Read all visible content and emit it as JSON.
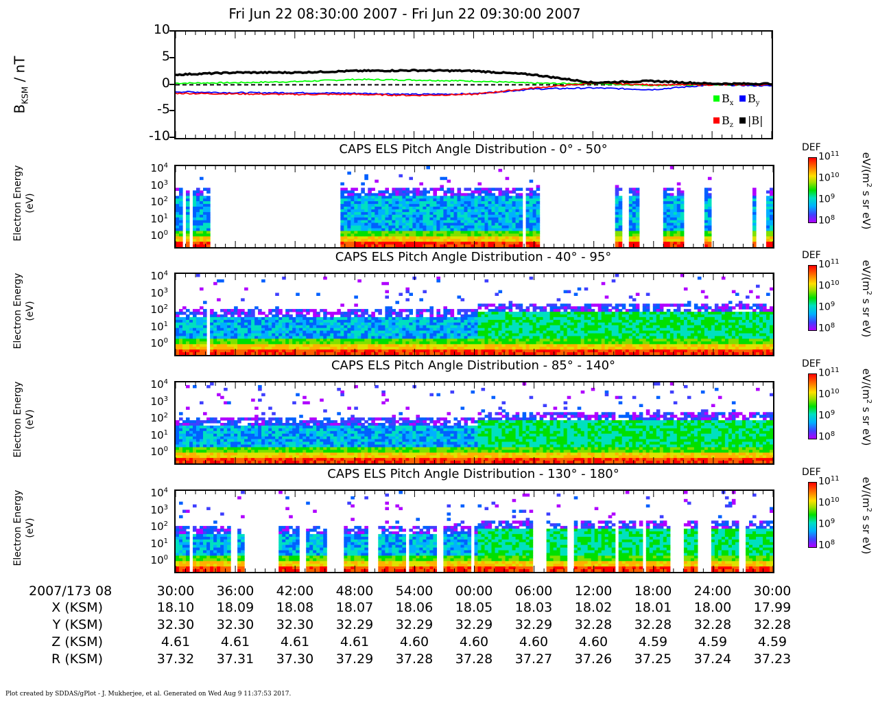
{
  "title": "Fri Jun 22 08:30:00 2007 - Fri Jun 22 09:30:00 2007",
  "mag_panel": {
    "ylabel_main": "B",
    "ylabel_sub": "KSM",
    "ylabel_unit": " / nT",
    "ticks": [
      "10",
      "5",
      "0",
      "-5",
      "-10"
    ],
    "legend": [
      {
        "label": "B",
        "sub": "x",
        "color": "#00ff00"
      },
      {
        "label": "B",
        "sub": "y",
        "color": "#0000ff"
      },
      {
        "label": "B",
        "sub": "z",
        "color": "#ff0000"
      },
      {
        "label": "|B|",
        "sub": "",
        "color": "#000000"
      }
    ]
  },
  "spec_panels": [
    {
      "title": "CAPS ELS Pitch Angle Distribution - 0° - 50°",
      "ylabel_1": "Electron Energy",
      "ylabel_2": "(eV)"
    },
    {
      "title": "CAPS ELS Pitch Angle Distribution - 40° - 95°",
      "ylabel_1": "Electron Energy",
      "ylabel_2": "(eV)"
    },
    {
      "title": "CAPS ELS Pitch Angle Distribution - 85° - 140°",
      "ylabel_1": "Electron Energy",
      "ylabel_2": "(eV)"
    },
    {
      "title": "CAPS ELS Pitch Angle Distribution - 130° - 180°",
      "ylabel_1": "Electron Energy",
      "ylabel_2": "(eV)"
    }
  ],
  "energy_ticks": [
    {
      "base": "10",
      "exp": "4"
    },
    {
      "base": "10",
      "exp": "3"
    },
    {
      "base": "10",
      "exp": "2"
    },
    {
      "base": "10",
      "exp": "1"
    },
    {
      "base": "10",
      "exp": "0"
    }
  ],
  "colorbar": {
    "label": "DEF",
    "ticks": [
      {
        "base": "10",
        "exp": "11"
      },
      {
        "base": "10",
        "exp": "10"
      },
      {
        "base": "10",
        "exp": "9"
      },
      {
        "base": "10",
        "exp": "8"
      }
    ],
    "unit_prefix": "eV/(m",
    "unit_exp": "2",
    "unit_suffix": " s sr eV)"
  },
  "xaxis": {
    "day_label": "2007/173 08",
    "times": [
      "30:00",
      "36:00",
      "42:00",
      "48:00",
      "54:00",
      "00:00",
      "06:00",
      "12:00",
      "18:00",
      "24:00",
      "30:00"
    ],
    "rows": [
      {
        "label": "X (KSM)",
        "values": [
          "18.10",
          "18.09",
          "18.08",
          "18.07",
          "18.06",
          "18.05",
          "18.03",
          "18.02",
          "18.01",
          "18.00",
          "17.99"
        ]
      },
      {
        "label": "Y (KSM)",
        "values": [
          "32.30",
          "32.30",
          "32.30",
          "32.29",
          "32.29",
          "32.29",
          "32.29",
          "32.28",
          "32.28",
          "32.28",
          "32.28"
        ]
      },
      {
        "label": "Z (KSM)",
        "values": [
          "4.61",
          "4.61",
          "4.61",
          "4.61",
          "4.60",
          "4.60",
          "4.60",
          "4.60",
          "4.59",
          "4.59",
          "4.59"
        ]
      },
      {
        "label": "R (KSM)",
        "values": [
          "37.32",
          "37.31",
          "37.30",
          "37.29",
          "37.28",
          "37.28",
          "37.27",
          "37.26",
          "37.25",
          "37.24",
          "37.23"
        ]
      }
    ]
  },
  "footer": "Plot created by SDDAS/gPlot - J. Mukherjee, et al.  Generated on Wed Aug 9 11:37:53 2017.",
  "chart_data": [
    {
      "type": "line",
      "title": "Fri Jun 22 08:30:00 2007 - Fri Jun 22 09:30:00 2007",
      "ylabel": "BKSM / nT",
      "ylim": [
        -10,
        10
      ],
      "x": [
        "08:30",
        "08:36",
        "08:42",
        "08:48",
        "08:54",
        "09:00",
        "09:06",
        "09:12",
        "09:18",
        "09:24",
        "09:30"
      ],
      "series": [
        {
          "name": "Bx",
          "color": "#00ff00",
          "values": [
            0.3,
            0.4,
            0.6,
            1.0,
            0.9,
            0.7,
            0.3,
            0.2,
            -0.1,
            0.0,
            -0.1
          ]
        },
        {
          "name": "By",
          "color": "#0000ff",
          "values": [
            -1.3,
            -1.5,
            -1.5,
            -1.6,
            -1.8,
            -1.7,
            -0.8,
            -0.6,
            -0.9,
            0.0,
            -0.2
          ]
        },
        {
          "name": "Bz",
          "color": "#ff0000",
          "values": [
            -1.6,
            -1.7,
            -1.8,
            -1.8,
            -2.0,
            -1.8,
            -0.6,
            0.3,
            0.0,
            0.0,
            0.0
          ]
        },
        {
          "name": "|B|",
          "color": "#000000",
          "values": [
            1.9,
            2.3,
            2.3,
            2.6,
            2.7,
            2.6,
            1.9,
            0.4,
            0.7,
            0.2,
            0.2
          ]
        }
      ]
    },
    {
      "type": "heatmap",
      "title": "CAPS ELS Pitch Angle Distribution - 0° - 50°",
      "ylabel": "Electron Energy (eV)",
      "yscale": "log",
      "colorbar_label": "DEF",
      "colorbar_range": [
        "1e8",
        "1e11"
      ]
    },
    {
      "type": "heatmap",
      "title": "CAPS ELS Pitch Angle Distribution - 40° - 95°",
      "ylabel": "Electron Energy (eV)",
      "yscale": "log",
      "colorbar_label": "DEF",
      "colorbar_range": [
        "1e8",
        "1e11"
      ]
    },
    {
      "type": "heatmap",
      "title": "CAPS ELS Pitch Angle Distribution - 85° - 140°",
      "ylabel": "Electron Energy (eV)",
      "yscale": "log",
      "colorbar_label": "DEF",
      "colorbar_range": [
        "1e8",
        "1e11"
      ]
    },
    {
      "type": "heatmap",
      "title": "CAPS ELS Pitch Angle Distribution - 130° - 180°",
      "ylabel": "Electron Energy (eV)",
      "yscale": "log",
      "colorbar_label": "DEF",
      "colorbar_range": [
        "1e8",
        "1e11"
      ]
    }
  ]
}
